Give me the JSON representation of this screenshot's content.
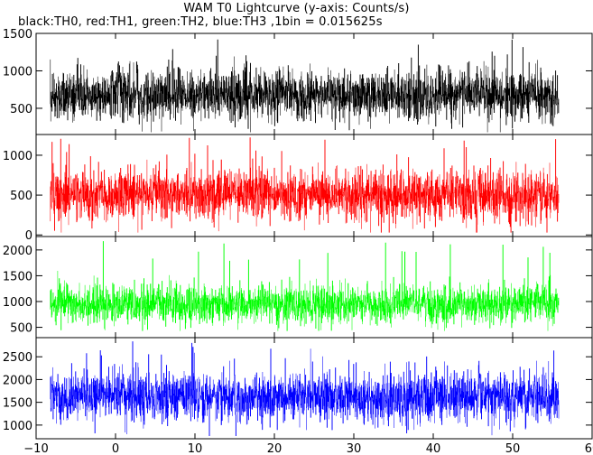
{
  "chart_data": {
    "type": "line",
    "title": "WAM T0 Lightcurve (y-axis: Counts/s)",
    "subtitle": "black:TH0, red:TH1, green:TH2, blue:TH3 ,1bin = 0.015625s",
    "x": {
      "lim": [
        -10,
        60
      ],
      "ticks": [
        -10,
        0,
        10,
        20,
        30,
        40,
        50,
        60
      ],
      "data_range": [
        -8.2,
        55.8
      ]
    },
    "panels": [
      {
        "series": "TH0",
        "color": "#000000",
        "ylim": [
          150,
          1500
        ],
        "yticks": [
          500,
          1000,
          1500
        ],
        "typical": [
          400,
          1000
        ],
        "mean": 680,
        "spread": 170,
        "min": 180,
        "max": 1500
      },
      {
        "series": "TH1",
        "color": "#ff0000",
        "ylim": [
          -20,
          1260
        ],
        "yticks": [
          0,
          500,
          1000
        ],
        "typical": [
          220,
          780
        ],
        "mean": 500,
        "spread": 160,
        "min": 30,
        "max": 1230
      },
      {
        "series": "TH2",
        "color": "#00ff00",
        "ylim": [
          300,
          2260
        ],
        "yticks": [
          500,
          1000,
          1500,
          2000
        ],
        "typical": [
          600,
          1300
        ],
        "mean": 950,
        "spread": 190,
        "min": 430,
        "max": 2180
      },
      {
        "series": "TH3",
        "color": "#0000ff",
        "ylim": [
          700,
          2920
        ],
        "yticks": [
          1000,
          1500,
          2000,
          2500
        ],
        "typical": [
          1100,
          2150
        ],
        "mean": 1620,
        "spread": 280,
        "min": 760,
        "max": 2860
      }
    ],
    "grid": false,
    "legend": "in subtitle"
  }
}
